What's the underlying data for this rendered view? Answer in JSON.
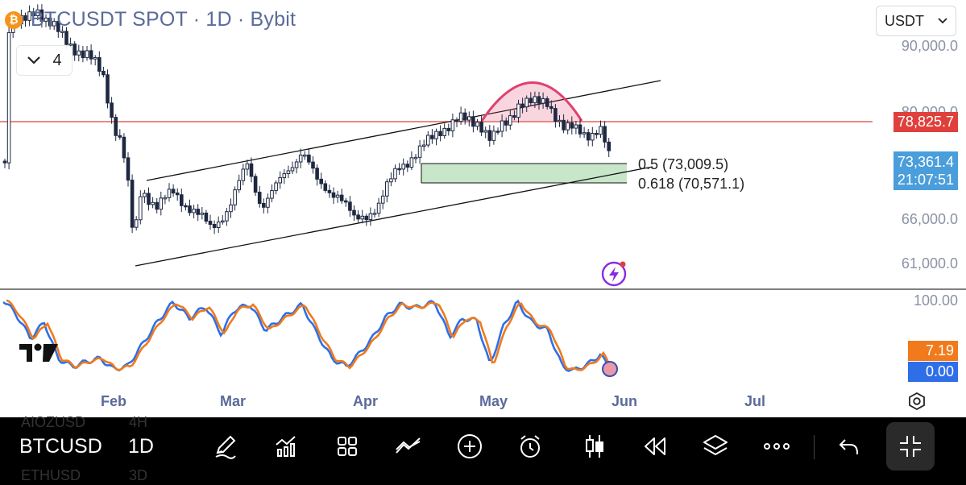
{
  "header": {
    "symbol_title": "BTCUSDT SPOT · 1D · Bybit",
    "coin_icon": "bitcoin-icon",
    "indicator_count": "4"
  },
  "currency": {
    "selected": "USDT"
  },
  "price_scale": {
    "labels": [
      "90,000.0",
      "80,000.0",
      "66,000.0",
      "61,000.0"
    ],
    "level_tag": {
      "value": "78,825.7",
      "color": "#e0403c"
    },
    "last_price": {
      "value": "73,361.4",
      "countdown": "21:07:51",
      "color": "#4a9edb"
    }
  },
  "fib_levels": [
    {
      "label": "0.5 (73,009.5)",
      "value": 73009.5
    },
    {
      "label": "0.618 (70,571.1)",
      "value": 70571.1
    }
  ],
  "oscillator": {
    "top_label": "100.00",
    "k_value": "7.19",
    "d_value": "0.00",
    "k_color": "#f07a1c",
    "d_color": "#2e6fe8"
  },
  "x_axis": {
    "months": [
      "Feb",
      "Mar",
      "Apr",
      "May",
      "Jun",
      "Jul"
    ]
  },
  "colors": {
    "up_candle": "#ffffff",
    "down_candle": "#1e2840",
    "resistance_line": "#e0403c",
    "dome": "#e0406e",
    "fib_zone": "#c8e6c9"
  },
  "bottom_bar": {
    "symbol": "BTCUSD",
    "interval": "1D",
    "ghost_rows": [
      "AIOZUSD",
      "4H",
      "ETHUSD",
      "3D"
    ],
    "tools": [
      "drawing-pen-icon",
      "indicators-icon",
      "layouts-icon",
      "compare-icon",
      "add-icon",
      "alert-clock-icon",
      "chart-type-candles-icon",
      "replay-icon",
      "layers-icon",
      "more-icon",
      "undo-icon",
      "fullscreen-exit-icon"
    ]
  }
}
